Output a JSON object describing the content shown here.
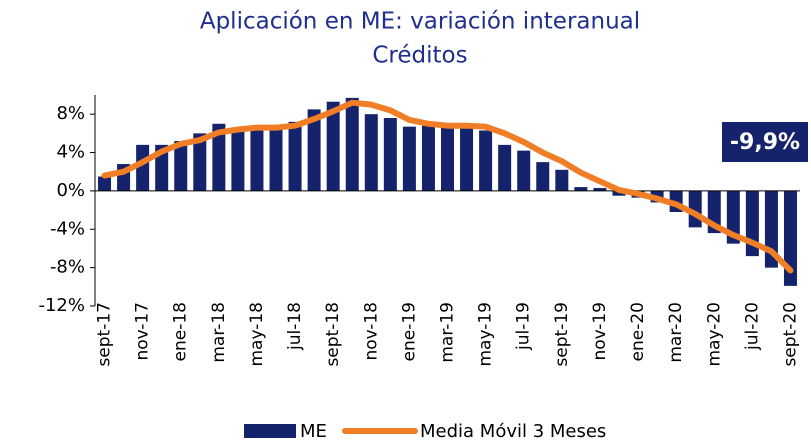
{
  "chart_data": {
    "type": "bar_line",
    "title": "Aplicación en ME: variación interanual",
    "subtitle": "Créditos",
    "annotation": "-9,9%",
    "categories": [
      "sept-17",
      null,
      "nov-17",
      null,
      "ene-18",
      null,
      "mar-18",
      null,
      "may-18",
      null,
      "jul-18",
      null,
      "sept-18",
      null,
      "nov-18",
      null,
      "ene-19",
      null,
      "mar-19",
      null,
      "may-19",
      null,
      "jul-19",
      null,
      "sept-19",
      null,
      "nov-19",
      null,
      "ene-20",
      null,
      "mar-20",
      null,
      "may-20",
      null,
      "jul-20",
      null,
      "sept-20"
    ],
    "series": [
      {
        "name": "ME",
        "color": "#14236b",
        "kind": "bar",
        "values": [
          1.5,
          2.8,
          4.8,
          4.8,
          5.2,
          6.0,
          7.0,
          6.3,
          6.5,
          6.8,
          7.2,
          8.5,
          9.3,
          9.7,
          8.0,
          7.6,
          6.7,
          6.8,
          6.7,
          7.0,
          6.3,
          4.8,
          4.2,
          3.0,
          2.2,
          0.4,
          0.3,
          -0.5,
          -0.7,
          -1.2,
          -2.2,
          -3.8,
          -4.4,
          -5.5,
          -6.8,
          -8.0,
          -9.9
        ]
      },
      {
        "name": "Media Móvil 3 Meses",
        "color": "#f07e26",
        "kind": "line",
        "values": [
          1.6,
          2.0,
          3.0,
          4.1,
          4.9,
          5.3,
          6.1,
          6.4,
          6.6,
          6.6,
          6.8,
          7.5,
          8.3,
          9.2,
          9.0,
          8.4,
          7.4,
          7.0,
          6.8,
          6.8,
          6.7,
          6.0,
          5.1,
          4.0,
          3.1,
          1.9,
          1.0,
          0.1,
          -0.3,
          -0.8,
          -1.4,
          -2.4,
          -3.6,
          -4.6,
          -5.4,
          -6.3,
          -8.3
        ]
      }
    ],
    "ylim": [
      -12,
      10
    ],
    "yticks": [
      {
        "value": 8,
        "label": "8%"
      },
      {
        "value": 4,
        "label": "4%"
      },
      {
        "value": 0,
        "label": "0%"
      },
      {
        "value": -4,
        "label": "-4%"
      },
      {
        "value": -8,
        "label": "-8%"
      },
      {
        "value": -12,
        "label": "-12%"
      }
    ]
  }
}
